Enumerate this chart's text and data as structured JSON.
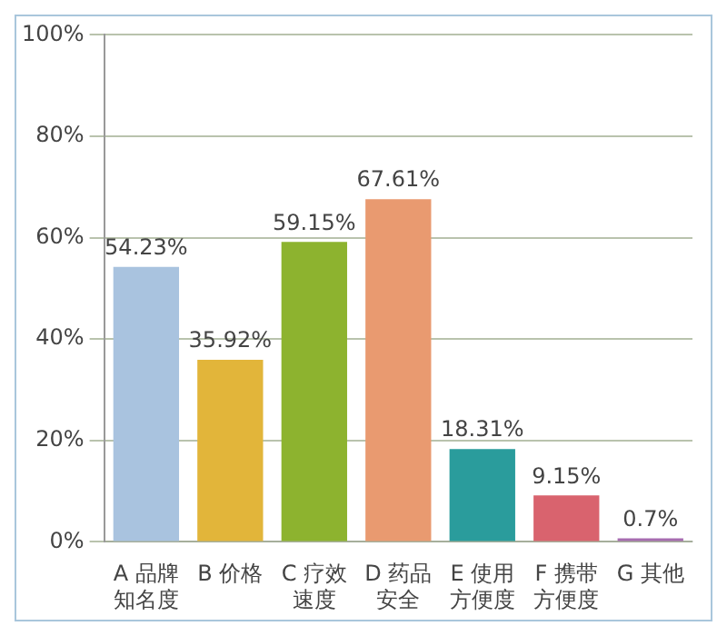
{
  "chart_data": {
    "type": "bar",
    "categories": [
      "A 品牌知名度",
      "B 价格",
      "C 疗效速度",
      "D 药品安全",
      "E 使用方便度",
      "F 携带方便度",
      "G 其他"
    ],
    "values": [
      54.23,
      35.92,
      59.15,
      67.61,
      18.31,
      9.15,
      0.7
    ],
    "colors": [
      "#a9c3df",
      "#e2b53a",
      "#8db32f",
      "#e99a70",
      "#2a9c9c",
      "#d9636e",
      "#a66cb0"
    ],
    "value_labels": [
      "54.23%",
      "35.92%",
      "59.15%",
      "67.61%",
      "18.31%",
      "9.15%",
      "0.7%"
    ],
    "ylim": [
      0,
      100
    ],
    "yticks": [
      {
        "value": 0,
        "label": "0%"
      },
      {
        "value": 20,
        "label": "20%"
      },
      {
        "value": 40,
        "label": "40%"
      },
      {
        "value": 60,
        "label": "60%"
      },
      {
        "value": 80,
        "label": "80%"
      },
      {
        "value": 100,
        "label": "100%"
      }
    ],
    "grid": "y"
  }
}
